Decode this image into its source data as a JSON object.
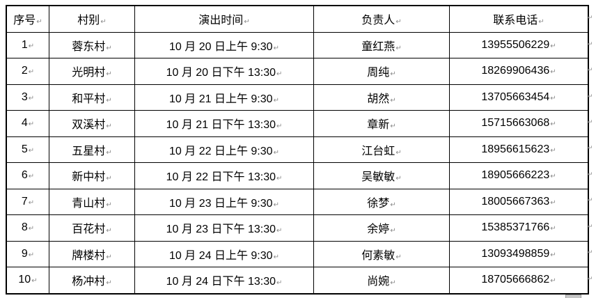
{
  "table": {
    "columns": [
      "序号",
      "村别",
      "演出时间",
      "负责人",
      "联系电话"
    ],
    "rows": [
      {
        "no": "1",
        "village": "蓉东村",
        "time": "10 月 20 日上午 9:30",
        "manager": "童红燕",
        "phone": "13955506229"
      },
      {
        "no": "2",
        "village": "光明村",
        "time": "10 月 20 日下午 13:30",
        "manager": "周纯",
        "phone": "18269906436"
      },
      {
        "no": "3",
        "village": "和平村",
        "time": "10 月 21 日上午 9:30",
        "manager": "胡然",
        "phone": "13705663454"
      },
      {
        "no": "4",
        "village": "双溪村",
        "time": "10 月 21 日下午 13:30",
        "manager": "章新",
        "phone": "15715663068"
      },
      {
        "no": "5",
        "village": "五星村",
        "time": "10 月 22 日上午 9:30",
        "manager": "江台虹",
        "phone": "18956615623"
      },
      {
        "no": "6",
        "village": "新中村",
        "time": "10 月 22 日下午 13:30",
        "manager": "吴敏敏",
        "phone": "18905666223"
      },
      {
        "no": "7",
        "village": "青山村",
        "time": "10 月 23 日上午 9:30",
        "manager": "徐梦",
        "phone": "18005667363"
      },
      {
        "no": "8",
        "village": "百花村",
        "time": "10 月 23 日下午 13:30",
        "manager": "余婷",
        "phone": "15385371766"
      },
      {
        "no": "9",
        "village": "牌楼村",
        "time": "10 月 24 日上午 9:30",
        "manager": "何素敏",
        "phone": "13093498859"
      },
      {
        "no": "10",
        "village": "杨冲村",
        "time": "10 月 24 日下午 13:30",
        "manager": "尚婉",
        "phone": "18705666862"
      }
    ]
  },
  "marks": {
    "end_of_cell": "↵",
    "end_of_row": "↵"
  },
  "colors": {
    "border": "#000000",
    "text": "#000000",
    "marker": "#8a8a8a",
    "handle_fill": "#c6c6c6",
    "handle_border": "#9a9a9a",
    "background": "#ffffff"
  }
}
